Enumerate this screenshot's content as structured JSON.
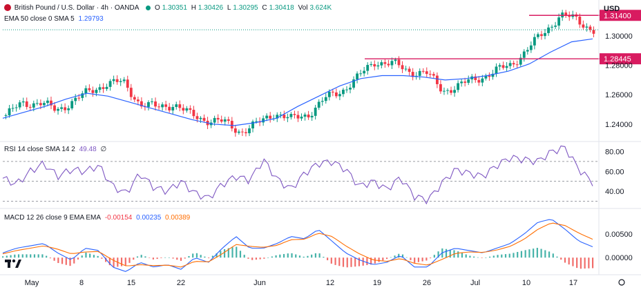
{
  "header": {
    "symbol": "British Pound / U.S. Dollar · 4h · OANDA",
    "open_label": "O",
    "open": "1.30351",
    "high_label": "H",
    "high": "1.30426",
    "low_label": "L",
    "low": "1.30295",
    "close_label": "C",
    "close": "1.30418",
    "vol_label": "Vol",
    "vol": "3.624K",
    "status_color": "#089981",
    "currency": "USD"
  },
  "ema_legend": {
    "label": "EMA 50 close 0 SMA 5",
    "value": "1.29793",
    "color": "#2962ff"
  },
  "rsi_legend": {
    "label": "RSI 14 close SMA 14 2",
    "value": "49.48",
    "extra": "∅",
    "color": "#7e57c2"
  },
  "macd_legend": {
    "label": "MACD 12 26 close 9 EMA EMA",
    "hist": "-0.00154",
    "macd": "0.00235",
    "signal": "0.00389"
  },
  "colors": {
    "up": "#089981",
    "down": "#f23645",
    "ema": "#2962ff",
    "rsi": "#7e57c2",
    "macd": "#2962ff",
    "signal": "#ff6d00",
    "level": "#d81b60"
  },
  "chart_data": {
    "type": "candlestick",
    "price_axis": {
      "ticks": [
        "1.30000",
        "1.28000",
        "1.26000",
        "1.24000"
      ],
      "tick_values": [
        1.3,
        1.28,
        1.26,
        1.24
      ]
    },
    "rsi_axis": {
      "ticks": [
        "80.00",
        "60.00",
        "40.00"
      ],
      "tick_values": [
        80,
        60,
        40
      ],
      "bands": [
        70,
        50,
        30
      ]
    },
    "macd_axis": {
      "ticks": [
        "0.00500",
        "0.00000"
      ],
      "tick_values": [
        0.005,
        0.0
      ]
    },
    "x_labels": [
      "May",
      "8",
      "15",
      "22",
      "Jun",
      "12",
      "19",
      "26",
      "Jul",
      "10",
      "17"
    ],
    "horizontal_levels": [
      {
        "value": 1.314,
        "label": "1.31400"
      },
      {
        "value": 1.28445,
        "label": "1.28445"
      }
    ],
    "close_path": [
      [
        "May-01",
        1.246
      ],
      [
        "May-03",
        1.254
      ],
      [
        "May-06",
        1.255
      ],
      [
        "May-08",
        1.249
      ],
      [
        "May-10",
        1.256
      ],
      [
        "May-13",
        1.262
      ],
      [
        "May-15",
        1.268
      ],
      [
        "May-17",
        1.268
      ],
      [
        "May-20",
        1.254
      ],
      [
        "May-22",
        1.251
      ],
      [
        "May-24",
        1.254
      ],
      [
        "May-27",
        1.246
      ],
      [
        "May-29",
        1.243
      ],
      [
        "May-31",
        1.241
      ],
      [
        "Jun-03",
        1.235
      ],
      [
        "Jun-05",
        1.24
      ],
      [
        "Jun-07",
        1.248
      ],
      [
        "Jun-10",
        1.243
      ],
      [
        "Jun-12",
        1.247
      ],
      [
        "Jun-14",
        1.257
      ],
      [
        "Jun-17",
        1.263
      ],
      [
        "Jun-19",
        1.272
      ],
      [
        "Jun-21",
        1.283
      ],
      [
        "Jun-24",
        1.281
      ],
      [
        "Jun-26",
        1.276
      ],
      [
        "Jun-28",
        1.275
      ],
      [
        "Jul-01",
        1.263
      ],
      [
        "Jul-03",
        1.266
      ],
      [
        "Jul-05",
        1.271
      ],
      [
        "Jul-08",
        1.275
      ],
      [
        "Jul-10",
        1.28
      ],
      [
        "Jul-12",
        1.29
      ],
      [
        "Jul-15",
        1.302
      ],
      [
        "Jul-17",
        1.314
      ],
      [
        "Jul-19",
        1.311
      ],
      [
        "Jul-21",
        1.304
      ]
    ],
    "ema50_path": [
      1.244,
      1.248,
      1.252,
      1.257,
      1.261,
      1.259,
      1.255,
      1.251,
      1.247,
      1.243,
      1.24,
      1.239,
      1.241,
      1.244,
      1.252,
      1.259,
      1.266,
      1.271,
      1.273,
      1.273,
      1.272,
      1.27,
      1.271,
      1.273,
      1.276,
      1.281,
      1.289,
      1.296,
      1.298
    ],
    "rsi_values": [
      53,
      47,
      60,
      68,
      55,
      62,
      60,
      66,
      45,
      38,
      58,
      44,
      40,
      50,
      38,
      33,
      47,
      55,
      51,
      72,
      52,
      42,
      58,
      68,
      70,
      62,
      45,
      50,
      42,
      54,
      35,
      31,
      48,
      62,
      58,
      55,
      66,
      74,
      72,
      70,
      80,
      84,
      62,
      49
    ],
    "macd_values": [
      0.001,
      0.002,
      0.0025,
      0.003,
      0.001,
      -0.0005,
      0.002,
      0.0015,
      -0.002,
      -0.003,
      -0.001,
      -0.002,
      -0.0015,
      -0.0025,
      0.0,
      -0.001,
      0.002,
      0.0045,
      0.002,
      0.002,
      0.003,
      0.0045,
      0.004,
      0.006,
      0.0035,
      0.001,
      -0.0005,
      -0.0015,
      -0.001,
      0.0005,
      -0.002,
      -0.002,
      0.001,
      0.002,
      0.0015,
      0.001,
      0.002,
      0.003,
      0.005,
      0.0075,
      0.0082,
      0.006,
      0.0035,
      0.0023
    ],
    "signal_values": [
      0.0008,
      0.0015,
      0.002,
      0.0025,
      0.0018,
      0.0008,
      0.0012,
      0.0013,
      -0.0005,
      -0.0018,
      -0.0015,
      -0.0017,
      -0.0016,
      -0.002,
      -0.0008,
      -0.0009,
      0.0008,
      0.0028,
      0.0024,
      0.0022,
      0.0026,
      0.0038,
      0.0039,
      0.0052,
      0.0045,
      0.0025,
      0.0008,
      -0.0005,
      -0.0008,
      -0.0002,
      -0.0012,
      -0.0016,
      -0.0004,
      0.0009,
      0.0012,
      0.0011,
      0.0016,
      0.0024,
      0.0039,
      0.006,
      0.0074,
      0.0068,
      0.0052,
      0.0039
    ]
  }
}
